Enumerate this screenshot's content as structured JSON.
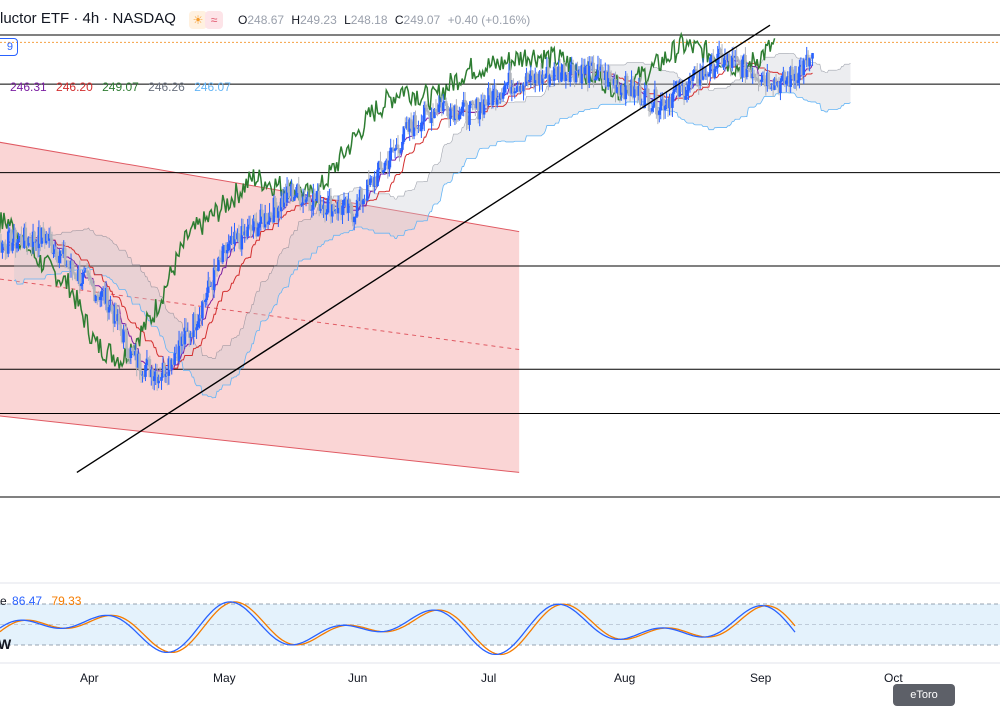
{
  "header": {
    "title": "luctor ETF · 4h · NASDAQ",
    "sun_icon": "☀",
    "wave_icon": "≈",
    "ohlc": {
      "o_label": "O",
      "o_value": "248.67",
      "h_label": "H",
      "h_value": "249.23",
      "l_label": "L",
      "l_value": "248.18",
      "c_label": "C",
      "c_value": "249.07",
      "change": "+0.40 (+0.16%)"
    },
    "indicator_badge": "9"
  },
  "ichimoku_legend": [
    {
      "value": "246.31",
      "color": "#7b1fa2"
    },
    {
      "value": "246.20",
      "color": "#d32f2f"
    },
    {
      "value": "249.07",
      "color": "#2e7d32"
    },
    {
      "value": "246.26",
      "color": "#6b7280"
    },
    {
      "value": "246.07",
      "color": "#64b5f6"
    }
  ],
  "stoch_legend": {
    "prefix": "e",
    "k": {
      "value": "86.47",
      "color": "#2962ff"
    },
    "d": {
      "value": "79.33",
      "color": "#f57c00"
    }
  },
  "vol_note": "W",
  "x_axis": {
    "months": [
      "Apr",
      "May",
      "Jun",
      "Jul",
      "Aug",
      "Sep",
      "Oct"
    ]
  },
  "watermark": "eToro",
  "colors": {
    "bull": "#2962ff",
    "bear": "#b0b4bc",
    "tenkan": "#7b1fa2",
    "kijun": "#d32f2f",
    "chikou": "#2e7d32",
    "span_b": "#6b7280",
    "span_a": "#64b5f6",
    "channel_fill": "#f8c7c7",
    "channel_line": "#e05a63",
    "trendline": "#000000",
    "stoch_band": "#d9ecfb"
  },
  "chart_data": {
    "type": "line",
    "symbol": "Semiconductor ETF",
    "interval": "4h",
    "exchange": "NASDAQ",
    "x_range": [
      "2024-03-06",
      "2024-10-25"
    ],
    "y_range": [
      176,
      259
    ],
    "last_price": 249.07,
    "horizontal_levels": [
      254,
      244,
      226,
      207,
      186,
      177,
      160
    ],
    "price_path": {
      "dates": [
        "2024-03-06",
        "2024-03-14",
        "2024-03-22",
        "2024-03-28",
        "2024-04-05",
        "2024-04-11",
        "2024-04-17",
        "2024-04-24",
        "2024-05-02",
        "2024-05-10",
        "2024-05-17",
        "2024-05-24",
        "2024-05-31",
        "2024-06-06",
        "2024-06-13",
        "2024-06-20",
        "2024-06-27",
        "2024-07-05",
        "2024-07-12",
        "2024-07-19",
        "2024-07-26",
        "2024-08-02",
        "2024-08-09",
        "2024-08-16",
        "2024-08-23",
        "2024-08-30",
        "2024-09-06",
        "2024-09-13"
      ],
      "values": [
        210,
        212,
        213,
        206,
        200,
        188,
        185,
        194,
        210,
        216,
        222,
        220,
        218,
        226,
        235,
        240,
        238,
        244,
        245,
        247,
        246,
        243,
        240,
        244,
        249,
        247,
        244,
        249.07
      ]
    },
    "tenkan": {
      "label": "246.31"
    },
    "kijun": {
      "label": "246.20"
    },
    "chikou": {
      "label": "249.07"
    },
    "senkou_b": {
      "label": "246.26"
    },
    "senkou_a": {
      "label": "246.07"
    },
    "channel": {
      "upper": {
        "from": [
          "2024-03-06",
          233
        ],
        "to": [
          "2024-07-08",
          214
        ]
      },
      "lower": {
        "from": [
          "2024-03-06",
          177
        ],
        "to": [
          "2024-07-08",
          165
        ]
      },
      "mid_dashed": {
        "from": [
          "2024-03-06",
          205
        ],
        "to": [
          "2024-07-08",
          190
        ]
      }
    },
    "trendline": {
      "from": [
        "2024-03-29",
        165
      ],
      "to": [
        "2024-09-01",
        256
      ]
    },
    "stochastic": {
      "k": 86.47,
      "d": 79.33,
      "band": [
        20,
        80
      ]
    }
  }
}
